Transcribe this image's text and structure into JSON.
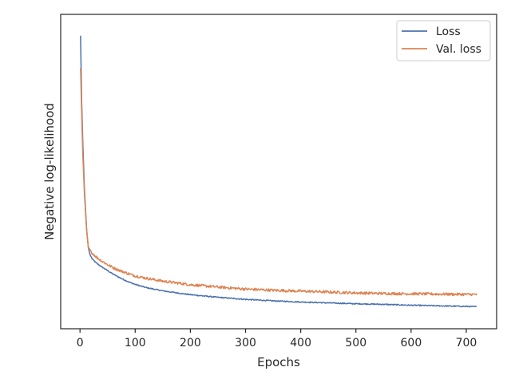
{
  "chart_data": {
    "type": "line",
    "title": "",
    "xlabel": "Epochs",
    "ylabel": "Negative log-likelihood",
    "xlim": [
      -35,
      755
    ],
    "ylim": [
      0,
      1
    ],
    "x_ticks": [
      0,
      100,
      200,
      300,
      400,
      500,
      600,
      700
    ],
    "y_ticks_shown": false,
    "grid": false,
    "legend_position": "top-right",
    "series": [
      {
        "name": "Loss",
        "color": "#4c72b0",
        "points": [
          [
            1,
            0.96
          ],
          [
            3,
            0.74
          ],
          [
            5,
            0.6
          ],
          [
            8,
            0.44
          ],
          [
            12,
            0.3
          ],
          [
            15,
            0.24
          ],
          [
            18,
            0.215
          ],
          [
            22,
            0.2
          ],
          [
            30,
            0.185
          ],
          [
            40,
            0.172
          ],
          [
            50,
            0.16
          ],
          [
            60,
            0.148
          ],
          [
            75,
            0.133
          ],
          [
            90,
            0.12
          ],
          [
            100,
            0.113
          ],
          [
            120,
            0.102
          ],
          [
            150,
            0.091
          ],
          [
            180,
            0.083
          ],
          [
            200,
            0.078
          ],
          [
            250,
            0.069
          ],
          [
            300,
            0.062
          ],
          [
            350,
            0.057
          ],
          [
            400,
            0.053
          ],
          [
            450,
            0.05
          ],
          [
            500,
            0.047
          ],
          [
            550,
            0.045
          ],
          [
            600,
            0.042
          ],
          [
            650,
            0.04
          ],
          [
            700,
            0.038
          ],
          [
            719,
            0.037
          ]
        ]
      },
      {
        "name": "Val. loss",
        "color": "#dd8452",
        "points": [
          [
            1,
            0.85
          ],
          [
            3,
            0.7
          ],
          [
            5,
            0.56
          ],
          [
            8,
            0.42
          ],
          [
            12,
            0.3
          ],
          [
            15,
            0.24
          ],
          [
            18,
            0.232
          ],
          [
            22,
            0.22
          ],
          [
            30,
            0.205
          ],
          [
            40,
            0.192
          ],
          [
            50,
            0.18
          ],
          [
            60,
            0.17
          ],
          [
            75,
            0.158
          ],
          [
            90,
            0.148
          ],
          [
            100,
            0.142
          ],
          [
            120,
            0.134
          ],
          [
            150,
            0.124
          ],
          [
            180,
            0.117
          ],
          [
            200,
            0.112
          ],
          [
            250,
            0.104
          ],
          [
            300,
            0.097
          ],
          [
            350,
            0.093
          ],
          [
            400,
            0.09
          ],
          [
            450,
            0.087
          ],
          [
            500,
            0.084
          ],
          [
            550,
            0.082
          ],
          [
            600,
            0.081
          ],
          [
            650,
            0.08
          ],
          [
            700,
            0.079
          ],
          [
            719,
            0.079
          ]
        ]
      }
    ]
  }
}
